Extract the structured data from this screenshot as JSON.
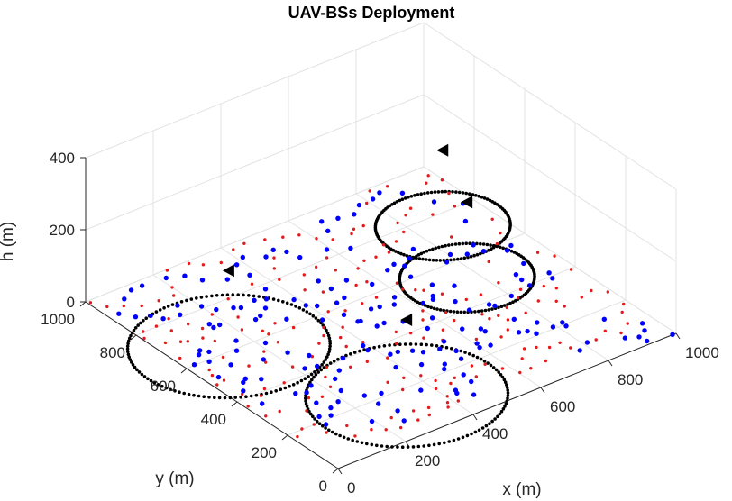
{
  "chart_data": {
    "type": "scatter",
    "title": "UAV-BSs Deployment",
    "xlabel": "x (m)",
    "ylabel": "y (m)",
    "zlabel": "h (m)",
    "xlim": [
      0,
      1000
    ],
    "ylim": [
      0,
      1000
    ],
    "zlim": [
      0,
      400
    ],
    "x_ticks": [
      "0",
      "200",
      "400",
      "600",
      "800",
      "1000"
    ],
    "y_ticks": [
      "0",
      "200",
      "400",
      "600",
      "800",
      "1000"
    ],
    "z_ticks": [
      "0",
      "200",
      "400"
    ],
    "grid": true,
    "view": "3d",
    "colors": {
      "red_users": "#e41a1c",
      "blue_users": "#0000ff",
      "uav": "#000000",
      "coverage": "#000000"
    },
    "uav_bs": [
      {
        "x": 330,
        "y": 170,
        "h": 210
      },
      {
        "x": 140,
        "y": 620,
        "h": 210
      },
      {
        "x": 770,
        "y": 520,
        "h": 210
      },
      {
        "x": 870,
        "y": 750,
        "h": 210
      }
    ],
    "coverage_circles": [
      {
        "cx": 330,
        "cy": 170,
        "r": 240
      },
      {
        "cx": 140,
        "cy": 620,
        "r": 240
      },
      {
        "cx": 770,
        "cy": 520,
        "r": 160
      },
      {
        "cx": 870,
        "cy": 750,
        "r": 160
      }
    ],
    "users_blue": [
      [
        101,
        183
      ],
      [
        110,
        222
      ],
      [
        135,
        209
      ],
      [
        156,
        238
      ],
      [
        194,
        126
      ],
      [
        143,
        278
      ],
      [
        187,
        250
      ],
      [
        223,
        287
      ],
      [
        255,
        182
      ],
      [
        290,
        217
      ],
      [
        245,
        340
      ],
      [
        252,
        233
      ],
      [
        271,
        127
      ],
      [
        255,
        80
      ],
      [
        389,
        292
      ],
      [
        371,
        169
      ],
      [
        444,
        264
      ],
      [
        435,
        117
      ],
      [
        429,
        104
      ],
      [
        488,
        126
      ],
      [
        493,
        163
      ],
      [
        456,
        73
      ],
      [
        473,
        213
      ],
      [
        488,
        231
      ],
      [
        533,
        226
      ],
      [
        599,
        241
      ],
      [
        546,
        263
      ],
      [
        605,
        260
      ],
      [
        625,
        233
      ],
      [
        713,
        239
      ],
      [
        654,
        293
      ],
      [
        732,
        230
      ],
      [
        774,
        248
      ],
      [
        742,
        208
      ],
      [
        791,
        208
      ],
      [
        818,
        192
      ],
      [
        821,
        211
      ],
      [
        907,
        160
      ],
      [
        811,
        99
      ],
      [
        775,
        80
      ],
      [
        893,
        59
      ],
      [
        922,
        42
      ],
      [
        966,
        88
      ],
      [
        990,
        1
      ],
      [
        925,
        15
      ],
      [
        950,
        58
      ],
      [
        35,
        520
      ],
      [
        25,
        603
      ],
      [
        61,
        633
      ],
      [
        61,
        592
      ],
      [
        88,
        629
      ],
      [
        75,
        648
      ],
      [
        92,
        548
      ],
      [
        142,
        592
      ],
      [
        169,
        630
      ],
      [
        217,
        578
      ],
      [
        164,
        713
      ],
      [
        183,
        714
      ],
      [
        166,
        732
      ],
      [
        256,
        757
      ],
      [
        270,
        746
      ],
      [
        264,
        680
      ],
      [
        283,
        687
      ],
      [
        314,
        708
      ],
      [
        341,
        741
      ],
      [
        367,
        779
      ],
      [
        322,
        635
      ],
      [
        386,
        579
      ],
      [
        440,
        566
      ],
      [
        469,
        474
      ],
      [
        453,
        517
      ],
      [
        447,
        520
      ],
      [
        506,
        547
      ],
      [
        528,
        542
      ],
      [
        582,
        556
      ],
      [
        561,
        529
      ],
      [
        618,
        491
      ],
      [
        656,
        503
      ],
      [
        647,
        490
      ],
      [
        682,
        449
      ],
      [
        724,
        509
      ],
      [
        686,
        546
      ],
      [
        669,
        608
      ],
      [
        688,
        658
      ],
      [
        645,
        668
      ],
      [
        673,
        680
      ],
      [
        718,
        679
      ],
      [
        751,
        708
      ],
      [
        776,
        609
      ],
      [
        804,
        632
      ],
      [
        836,
        608
      ],
      [
        873,
        633
      ],
      [
        875,
        595
      ],
      [
        920,
        562
      ],
      [
        941,
        575
      ],
      [
        914,
        489
      ],
      [
        935,
        416
      ],
      [
        926,
        391
      ],
      [
        864,
        398
      ],
      [
        865,
        431
      ],
      [
        869,
        459
      ],
      [
        801,
        386
      ],
      [
        736,
        387
      ],
      [
        684,
        396
      ],
      [
        743,
        374
      ],
      [
        741,
        295
      ],
      [
        653,
        309
      ],
      [
        618,
        336
      ],
      [
        550,
        317
      ],
      [
        521,
        295
      ],
      [
        482,
        308
      ],
      [
        466,
        329
      ],
      [
        436,
        347
      ],
      [
        415,
        349
      ],
      [
        385,
        398
      ],
      [
        389,
        422
      ],
      [
        317,
        405
      ],
      [
        247,
        414
      ],
      [
        218,
        424
      ],
      [
        262,
        466
      ],
      [
        231,
        509
      ],
      [
        167,
        519
      ],
      [
        108,
        449
      ],
      [
        80,
        474
      ],
      [
        66,
        464
      ],
      [
        42,
        432
      ],
      [
        41,
        356
      ],
      [
        131,
        344
      ],
      [
        154,
        331
      ],
      [
        182,
        351
      ],
      [
        276,
        365
      ],
      [
        556,
        390
      ],
      [
        594,
        422
      ],
      [
        530,
        452
      ],
      [
        491,
        475
      ],
      [
        577,
        638
      ],
      [
        541,
        691
      ],
      [
        487,
        730
      ],
      [
        489,
        682
      ],
      [
        488,
        629
      ],
      [
        460,
        621
      ],
      [
        415,
        639
      ],
      [
        396,
        658
      ],
      [
        390,
        697
      ],
      [
        315,
        754
      ],
      [
        219,
        776
      ],
      [
        201,
        810
      ],
      [
        159,
        849
      ],
      [
        138,
        811
      ],
      [
        81,
        851
      ],
      [
        96,
        821
      ],
      [
        50,
        869
      ],
      [
        28,
        906
      ],
      [
        79,
        953
      ],
      [
        117,
        976
      ],
      [
        149,
        976
      ],
      [
        215,
        969
      ],
      [
        255,
        949
      ],
      [
        276,
        907
      ],
      [
        324,
        872
      ],
      [
        377,
        855
      ],
      [
        382,
        913
      ],
      [
        414,
        932
      ],
      [
        458,
        899
      ],
      [
        491,
        914
      ],
      [
        510,
        887
      ],
      [
        519,
        846
      ],
      [
        590,
        835
      ],
      [
        638,
        805
      ],
      [
        644,
        903
      ],
      [
        659,
        948
      ],
      [
        698,
        935
      ],
      [
        739,
        926
      ],
      [
        774,
        953
      ],
      [
        816,
        955
      ],
      [
        846,
        969
      ],
      [
        887,
        933
      ],
      [
        921,
        853
      ],
      [
        970,
        804
      ],
      [
        925,
        734
      ]
    ],
    "users_red": [
      [
        14,
        180
      ],
      [
        44,
        202
      ],
      [
        79,
        201
      ],
      [
        79,
        152
      ],
      [
        122,
        96
      ],
      [
        136,
        147
      ],
      [
        170,
        96
      ],
      [
        197,
        74
      ],
      [
        230,
        59
      ],
      [
        240,
        110
      ],
      [
        283,
        62
      ],
      [
        300,
        103
      ],
      [
        318,
        64
      ],
      [
        337,
        92
      ],
      [
        374,
        65
      ],
      [
        386,
        83
      ],
      [
        410,
        73
      ],
      [
        403,
        107
      ],
      [
        403,
        152
      ],
      [
        339,
        198
      ],
      [
        332,
        248
      ],
      [
        374,
        241
      ],
      [
        412,
        224
      ],
      [
        425,
        183
      ],
      [
        445,
        150
      ],
      [
        468,
        165
      ],
      [
        511,
        137
      ],
      [
        533,
        184
      ],
      [
        562,
        170
      ],
      [
        582,
        128
      ],
      [
        603,
        87
      ],
      [
        635,
        87
      ],
      [
        683,
        92
      ],
      [
        646,
        136
      ],
      [
        678,
        170
      ],
      [
        704,
        157
      ],
      [
        728,
        137
      ],
      [
        760,
        139
      ],
      [
        765,
        104
      ],
      [
        835,
        96
      ],
      [
        876,
        115
      ],
      [
        900,
        84
      ],
      [
        938,
        109
      ],
      [
        960,
        160
      ],
      [
        985,
        188
      ],
      [
        990,
        257
      ],
      [
        963,
        287
      ],
      [
        927,
        276
      ],
      [
        870,
        268
      ],
      [
        869,
        299
      ],
      [
        837,
        327
      ],
      [
        780,
        301
      ],
      [
        728,
        302
      ],
      [
        697,
        334
      ],
      [
        696,
        361
      ],
      [
        11,
        494
      ],
      [
        36,
        500
      ],
      [
        28,
        536
      ],
      [
        38,
        561
      ],
      [
        17,
        649
      ],
      [
        78,
        700
      ],
      [
        115,
        690
      ],
      [
        129,
        661
      ],
      [
        210,
        662
      ],
      [
        245,
        627
      ],
      [
        247,
        606
      ],
      [
        242,
        562
      ],
      [
        190,
        548
      ],
      [
        163,
        505
      ],
      [
        122,
        517
      ],
      [
        99,
        588
      ],
      [
        64,
        709
      ],
      [
        33,
        728
      ],
      [
        6,
        776
      ],
      [
        23,
        803
      ],
      [
        62,
        803
      ],
      [
        78,
        764
      ],
      [
        127,
        764
      ],
      [
        141,
        726
      ],
      [
        238,
        715
      ],
      [
        289,
        637
      ],
      [
        311,
        593
      ],
      [
        367,
        549
      ],
      [
        403,
        521
      ],
      [
        370,
        486
      ],
      [
        356,
        444
      ],
      [
        399,
        435
      ],
      [
        488,
        424
      ],
      [
        512,
        398
      ],
      [
        580,
        361
      ],
      [
        627,
        380
      ],
      [
        634,
        422
      ],
      [
        571,
        429
      ],
      [
        596,
        463
      ],
      [
        619,
        573
      ],
      [
        626,
        605
      ],
      [
        574,
        655
      ],
      [
        545,
        658
      ],
      [
        595,
        718
      ],
      [
        628,
        738
      ],
      [
        660,
        734
      ],
      [
        697,
        732
      ],
      [
        708,
        768
      ],
      [
        741,
        762
      ],
      [
        781,
        786
      ],
      [
        795,
        829
      ],
      [
        832,
        846
      ],
      [
        860,
        864
      ],
      [
        883,
        808
      ],
      [
        947,
        806
      ],
      [
        972,
        863
      ],
      [
        997,
        923
      ],
      [
        959,
        935
      ],
      [
        984,
        960
      ],
      [
        878,
        981
      ],
      [
        833,
        990
      ],
      [
        793,
        949
      ],
      [
        724,
        869
      ],
      [
        697,
        871
      ],
      [
        680,
        857
      ],
      [
        629,
        863
      ],
      [
        602,
        892
      ],
      [
        580,
        931
      ],
      [
        544,
        947
      ],
      [
        504,
        965
      ],
      [
        455,
        981
      ],
      [
        418,
        975
      ],
      [
        359,
        944
      ],
      [
        320,
        963
      ],
      [
        297,
        989
      ],
      [
        238,
        996
      ],
      [
        200,
        925
      ],
      [
        180,
        892
      ],
      [
        138,
        895
      ],
      [
        92,
        901
      ],
      [
        59,
        928
      ],
      [
        26,
        950
      ],
      [
        7,
        990
      ],
      [
        106,
        813
      ],
      [
        198,
        764
      ],
      [
        271,
        798
      ],
      [
        356,
        818
      ],
      [
        419,
        794
      ],
      [
        441,
        843
      ],
      [
        470,
        883
      ],
      [
        314,
        496
      ],
      [
        344,
        518
      ],
      [
        265,
        457
      ],
      [
        200,
        448
      ],
      [
        140,
        401
      ],
      [
        87,
        408
      ],
      [
        61,
        387
      ],
      [
        31,
        421
      ],
      [
        8,
        367
      ],
      [
        13,
        304
      ],
      [
        52,
        301
      ],
      [
        103,
        263
      ],
      [
        143,
        308
      ],
      [
        171,
        292
      ],
      [
        214,
        317
      ],
      [
        232,
        361
      ],
      [
        262,
        396
      ],
      [
        306,
        361
      ],
      [
        352,
        356
      ],
      [
        400,
        340
      ],
      [
        456,
        379
      ],
      [
        522,
        360
      ],
      [
        551,
        324
      ],
      [
        616,
        277
      ],
      [
        668,
        248
      ],
      [
        700,
        265
      ],
      [
        722,
        332
      ],
      [
        760,
        349
      ],
      [
        808,
        369
      ],
      [
        836,
        396
      ],
      [
        888,
        374
      ],
      [
        906,
        348
      ],
      [
        985,
        396
      ],
      [
        992,
        471
      ],
      [
        971,
        509
      ],
      [
        920,
        602
      ],
      [
        956,
        638
      ],
      [
        980,
        701
      ],
      [
        855,
        696
      ],
      [
        855,
        548
      ],
      [
        814,
        455
      ],
      [
        748,
        436
      ],
      [
        708,
        440
      ],
      [
        679,
        497
      ],
      [
        655,
        538
      ],
      [
        641,
        552
      ],
      [
        548,
        582
      ],
      [
        505,
        581
      ],
      [
        454,
        579
      ],
      [
        420,
        601
      ],
      [
        465,
        682
      ],
      [
        437,
        717
      ],
      [
        478,
        775
      ],
      [
        522,
        786
      ],
      [
        549,
        745
      ],
      [
        568,
        805
      ]
    ]
  }
}
